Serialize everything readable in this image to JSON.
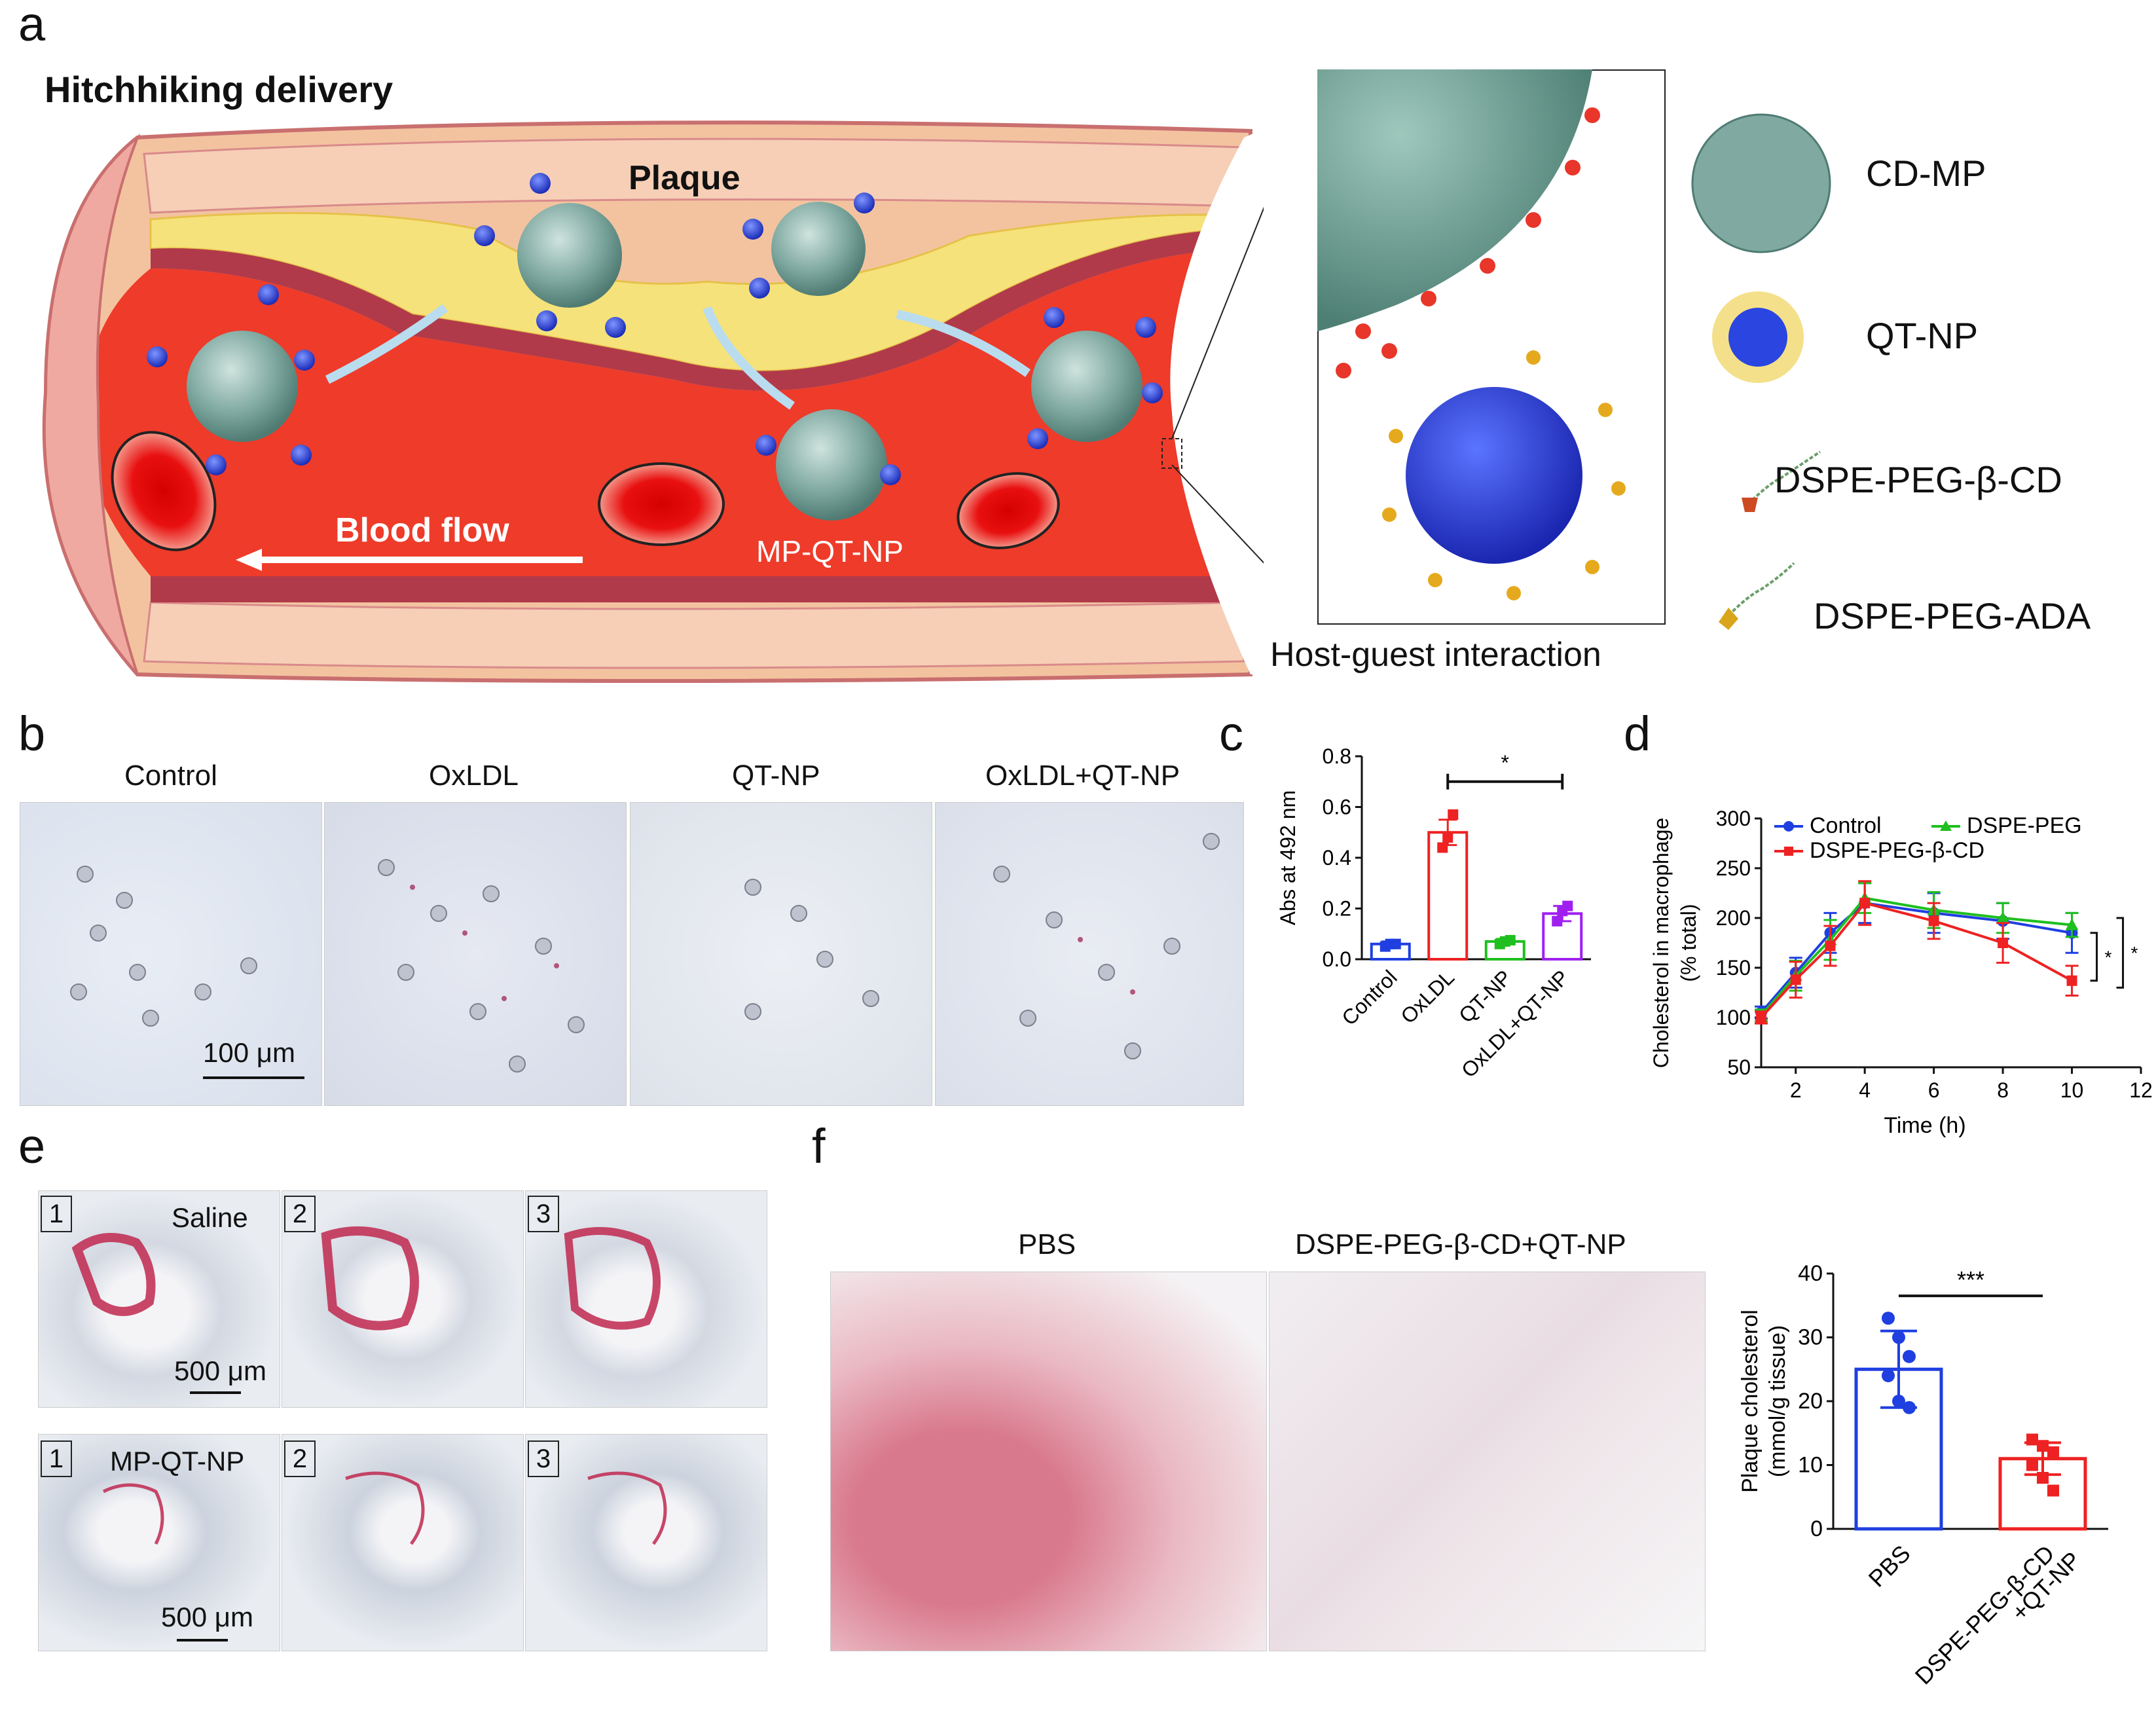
{
  "panels": [
    "a",
    "b",
    "c",
    "d",
    "e",
    "f"
  ],
  "a": {
    "title": "Hitchhiking delivery",
    "plaque_label": "Plaque",
    "blood_flow_label": "Blood flow",
    "complex_label": "MP-QT-NP",
    "inset_caption": "Host-guest interaction",
    "legend": [
      "CD-MP",
      "QT-NP",
      "DSPE-PEG-β-CD",
      "DSPE-PEG-ADA"
    ]
  },
  "b": {
    "columns": [
      "Control",
      "OxLDL",
      "QT-NP",
      "OxLDL+QT-NP"
    ],
    "scale_bar": "100 μm"
  },
  "e": {
    "rows": [
      {
        "group": "Saline",
        "sections": [
          "1",
          "2",
          "3"
        ]
      },
      {
        "group": "MP-QT-NP",
        "sections": [
          "1",
          "2",
          "3"
        ]
      }
    ],
    "scale_bar": "500 μm"
  },
  "f": {
    "columns": [
      "PBS",
      "DSPE-PEG-β-CD+QT-NP"
    ]
  },
  "chart_data": [
    {
      "panel": "c",
      "type": "bar",
      "categories": [
        "Control",
        "OxLDL",
        "QT-NP",
        "OxLDL+QT-NP"
      ],
      "values": [
        0.06,
        0.5,
        0.07,
        0.18
      ],
      "errors": [
        0.01,
        0.05,
        0.01,
        0.03
      ],
      "points": [
        [
          0.05,
          0.06,
          0.06
        ],
        [
          0.44,
          0.48,
          0.57
        ],
        [
          0.06,
          0.07,
          0.075
        ],
        [
          0.15,
          0.19,
          0.21
        ]
      ],
      "colors": [
        "#1f3fe0",
        "#ee2222",
        "#1fbf1f",
        "#a020f0"
      ],
      "ylabel": "Abs at 492 nm",
      "ylim": [
        0,
        0.8
      ],
      "yticks": [
        "0.0",
        "0.2",
        "0.4",
        "0.6",
        "0.8"
      ],
      "significance": [
        {
          "from": "OxLDL",
          "to": "OxLDL+QT-NP",
          "label": "*"
        }
      ]
    },
    {
      "panel": "d",
      "type": "line",
      "x": [
        1,
        2,
        3,
        4,
        6,
        8,
        10
      ],
      "xlabel": "Time (h)",
      "ylabel": "Cholesterol in macrophage (% total)",
      "ylabel_lines": [
        "Cholesterol in macrophage",
        "(% total)"
      ],
      "xlim": [
        1,
        12
      ],
      "ylim": [
        50,
        300
      ],
      "xticks": [
        "2",
        "4",
        "6",
        "8",
        "10",
        "12"
      ],
      "yticks": [
        "50",
        "100",
        "150",
        "200",
        "250",
        "300"
      ],
      "series": [
        {
          "name": "Control",
          "color": "#1f3fe0",
          "marker": "circle",
          "values": [
            105,
            145,
            185,
            215,
            205,
            197,
            185
          ],
          "errors": [
            6,
            15,
            20,
            20,
            20,
            18,
            20
          ]
        },
        {
          "name": "DSPE-PEG",
          "color": "#1fbf1f",
          "marker": "triangle",
          "values": [
            102,
            142,
            178,
            220,
            208,
            200,
            193
          ],
          "errors": [
            6,
            15,
            20,
            15,
            18,
            15,
            12
          ]
        },
        {
          "name": "DSPE-PEG-β-CD",
          "color": "#ee2222",
          "marker": "square",
          "values": [
            100,
            138,
            172,
            215,
            197,
            175,
            137
          ],
          "errors": [
            6,
            18,
            20,
            22,
            18,
            20,
            15
          ]
        }
      ],
      "significance": [
        {
          "label": "*"
        },
        {
          "label": "*"
        }
      ]
    },
    {
      "panel": "f",
      "type": "bar",
      "categories": [
        "PBS",
        "DSPE-PEG-β-CD+QT-NP"
      ],
      "category_lines": [
        [
          "PBS"
        ],
        [
          "DSPE-PEG-β-CD",
          "+QT-NP"
        ]
      ],
      "values": [
        25,
        11
      ],
      "errors": [
        6,
        2.5
      ],
      "points": [
        [
          33,
          30,
          27,
          24,
          20,
          19
        ],
        [
          14,
          13,
          12,
          10,
          8,
          6
        ]
      ],
      "colors": [
        "#1f3fe0",
        "#ee2222"
      ],
      "ylabel": "Plaque cholesterol (mmol/g tissue)",
      "ylabel_lines": [
        "Plaque cholesterol",
        "(mmol/g tissue)"
      ],
      "ylim": [
        0,
        40
      ],
      "yticks": [
        "0",
        "10",
        "20",
        "30",
        "40"
      ],
      "significance": [
        {
          "from": "PBS",
          "to": "DSPE-PEG-β-CD+QT-NP",
          "label": "***"
        }
      ]
    }
  ]
}
